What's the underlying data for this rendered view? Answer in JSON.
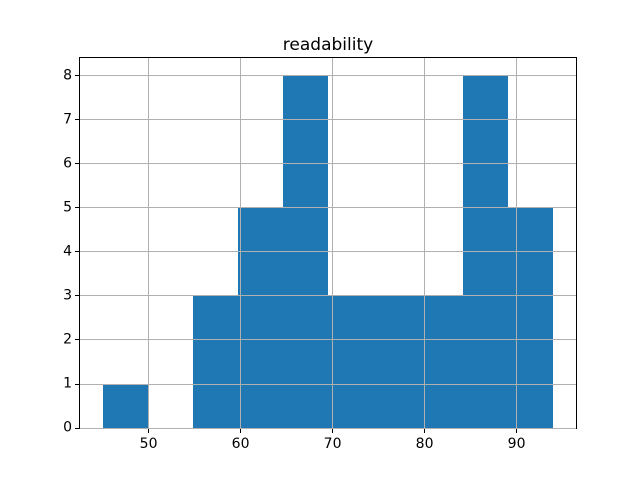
{
  "chart_data": {
    "type": "bar",
    "subtype": "histogram",
    "title": "readability",
    "xlabel": "",
    "ylabel": "",
    "bin_edges": [
      45.0,
      49.9,
      54.8,
      59.7,
      64.6,
      69.5,
      74.4,
      79.3,
      84.2,
      89.1,
      94.0
    ],
    "counts": [
      1,
      0,
      3,
      5,
      8,
      3,
      3,
      3,
      8,
      5
    ],
    "x_ticks": [
      50,
      60,
      70,
      80,
      90
    ],
    "y_ticks": [
      0,
      1,
      2,
      3,
      4,
      5,
      6,
      7,
      8
    ],
    "xlim": [
      42.55,
      96.45
    ],
    "ylim": [
      0,
      8.4
    ],
    "grid": true,
    "grid_over_bars": true,
    "legend_position": "none",
    "bar_color": "#1f77b4",
    "grid_color": "#b0b0b0",
    "axis_color": "#000000",
    "background_color": "#ffffff"
  }
}
